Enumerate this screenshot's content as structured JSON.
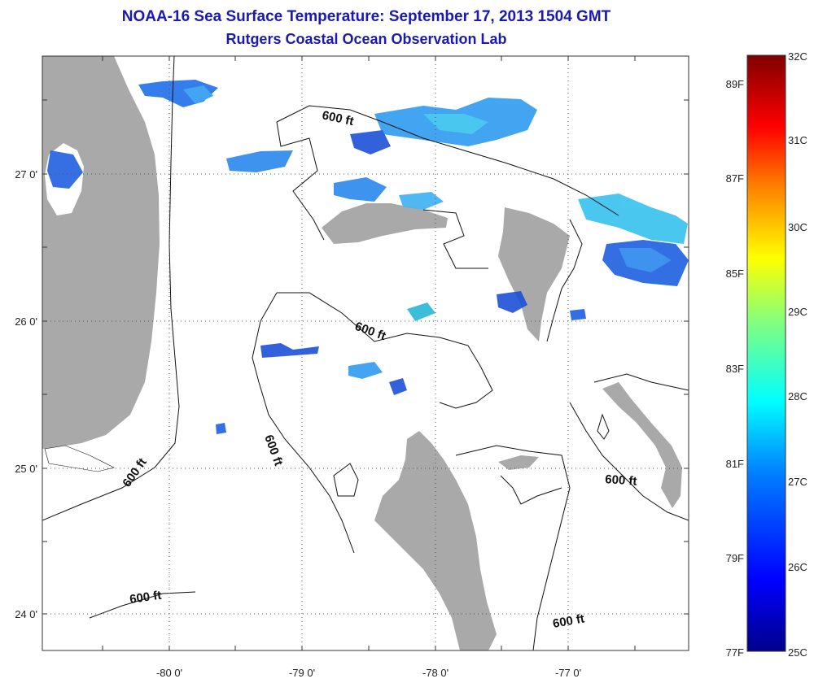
{
  "header": {
    "title": "NOAA-16 Sea Surface Temperature:  September 17, 2013 1504 GMT",
    "subtitle": "Rutgers Coastal Ocean Observation Lab"
  },
  "map": {
    "lon_ticks": [
      "-80 0'",
      "-79 0'",
      "-78 0'",
      "-77 0'"
    ],
    "lat_ticks": [
      "27 0'",
      "26 0'",
      "25 0'",
      "24 0'"
    ],
    "contour_labels": [
      "600 ft",
      "600 ft",
      "600 ft",
      "600 ft",
      "600 ft",
      "600 ft",
      "600 ft"
    ],
    "colors": {
      "land": "#a9a9a9",
      "grid": "#555555",
      "contour": "#111111"
    }
  },
  "colorbar": {
    "celsius": [
      "32C",
      "31C",
      "30C",
      "29C",
      "28C",
      "27C",
      "26C",
      "25C"
    ],
    "fahrenheit": [
      "89F",
      "87F",
      "85F",
      "83F",
      "81F",
      "79F",
      "77F"
    ],
    "range_c": [
      25,
      32
    ],
    "colors": [
      "#00008b",
      "#0000ff",
      "#0080ff",
      "#00ffff",
      "#80ff80",
      "#ffff00",
      "#ff8000",
      "#ff0000",
      "#800000"
    ]
  }
}
